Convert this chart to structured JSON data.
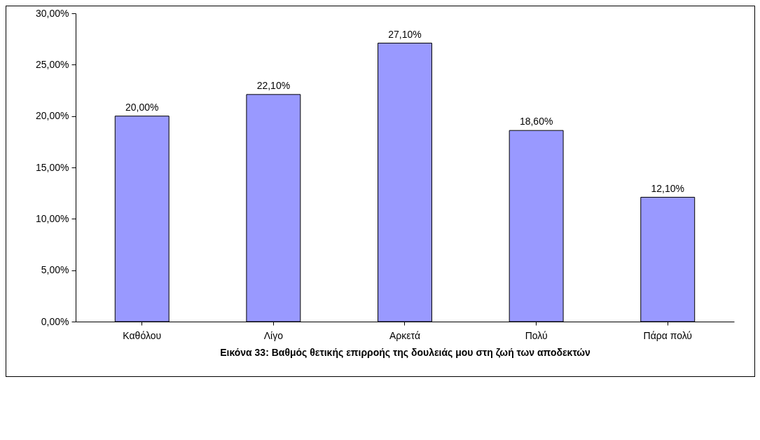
{
  "chart_data": {
    "type": "bar",
    "xlabel": "Εικόνα 33: Βαθμός θετικής επιρροής της δουλειάς μου στη ζωή των αποδεκτών",
    "categories": [
      "Καθόλου",
      "Λίγο",
      "Αρκετά",
      "Πολύ",
      "Πάρα πολύ"
    ],
    "values": [
      20,
      22.1,
      27.1,
      18.6,
      12.1
    ],
    "value_labels": [
      "20,00%",
      "22,10%",
      "27,10%",
      "18,60%",
      "12,10%"
    ],
    "color": "#9999ff",
    "ylim": [
      0,
      30
    ],
    "yticks": [
      {
        "value": 0,
        "label": "0,00%"
      },
      {
        "value": 5,
        "label": "5,00%"
      },
      {
        "value": 10,
        "label": "10,00%"
      },
      {
        "value": 15,
        "label": "15,00%"
      },
      {
        "value": 20,
        "label": "20,00%"
      },
      {
        "value": 25,
        "label": "25,00%"
      },
      {
        "value": 30,
        "label": "30,00%"
      }
    ],
    "grid": false
  }
}
